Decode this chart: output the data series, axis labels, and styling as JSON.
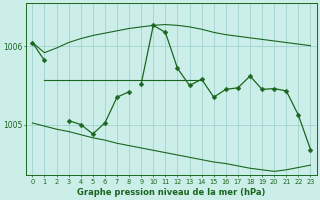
{
  "xlabel": "Graphe pression niveau de la mer (hPa)",
  "background_color": "#cceee8",
  "grid_color": "#99cccc",
  "line_color": "#1a6620",
  "upper_line": [
    1006.05,
    1005.92,
    1005.98,
    1006.05,
    1006.1,
    1006.14,
    1006.17,
    1006.2,
    1006.23,
    1006.25,
    1006.27,
    1006.28,
    1006.27,
    1006.25,
    1006.22,
    1006.18,
    1006.15,
    1006.13,
    1006.11,
    1006.09,
    1006.07,
    1006.05,
    1006.03,
    1006.01
  ],
  "lower_line": [
    1005.02,
    1004.98,
    1004.94,
    1004.91,
    1004.87,
    1004.83,
    1004.8,
    1004.76,
    1004.73,
    1004.7,
    1004.67,
    1004.64,
    1004.61,
    1004.58,
    1004.55,
    1004.52,
    1004.5,
    1004.47,
    1004.44,
    1004.42,
    1004.4,
    1004.42,
    1004.45,
    1004.48
  ],
  "mid_line_x": [
    1,
    2,
    3,
    4,
    5,
    6,
    7,
    8,
    9,
    10,
    11,
    12,
    13,
    14
  ],
  "mid_line_y": [
    1005.57,
    1005.57,
    1005.57,
    1005.57,
    1005.57,
    1005.57,
    1005.57,
    1005.57,
    1005.57,
    1005.57,
    1005.57,
    1005.57,
    1005.57,
    1005.57
  ],
  "main_line": [
    1006.05,
    1005.82,
    null,
    null,
    null,
    null,
    null,
    null,
    null,
    1005.52,
    1006.27,
    1006.18,
    1005.72,
    1005.5,
    1005.58,
    1005.35,
    1005.45,
    1005.47,
    1005.62,
    1005.45,
    1005.46,
    1005.43,
    1005.12,
    1004.68
  ],
  "jagged_line": [
    null,
    null,
    null,
    1005.05,
    1005.0,
    1004.88,
    1005.02,
    1005.35,
    1005.42,
    null,
    null,
    null,
    null,
    null,
    null,
    null,
    null,
    null,
    null,
    null,
    null,
    null,
    null,
    null
  ],
  "ylim": [
    1004.35,
    1006.55
  ],
  "ytick_vals": [
    1005.0,
    1006.0
  ],
  "ytick_labels": [
    "1005",
    "1006"
  ]
}
